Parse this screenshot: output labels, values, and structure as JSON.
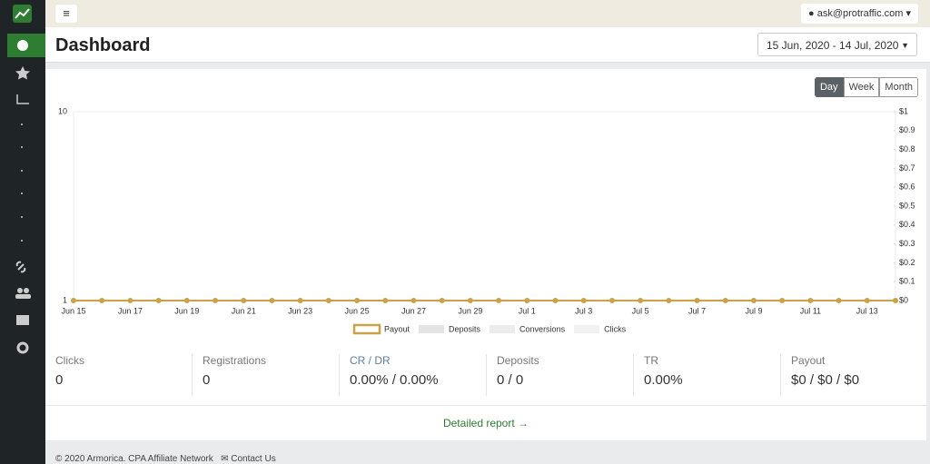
{
  "header": {
    "user": "ask@protraffic.com"
  },
  "page_title": "Dashboard",
  "date_range": "15 Jun, 2020 - 14 Jul, 2020",
  "period_buttons": [
    "Day",
    "Week",
    "Month"
  ],
  "chart_data": {
    "type": "line",
    "categories": [
      "Jun 15",
      null,
      "Jun 17",
      null,
      "Jun 19",
      null,
      "Jun 21",
      null,
      "Jun 23",
      null,
      "Jun 25",
      null,
      "Jun 27",
      null,
      "Jun 29",
      null,
      "Jul 1",
      null,
      "Jul 3",
      null,
      "Jul 5",
      null,
      "Jul 7",
      null,
      "Jul 9",
      null,
      "Jul 11",
      null,
      "Jul 13",
      null
    ],
    "series": [
      {
        "name": "Payout",
        "color": "#c9a24a",
        "axis": "y2",
        "values": [
          0,
          0,
          0,
          0,
          0,
          0,
          0,
          0,
          0,
          0,
          0,
          0,
          0,
          0,
          0,
          0,
          0,
          0,
          0,
          0,
          0,
          0,
          0,
          0,
          0,
          0,
          0,
          0,
          0,
          0
        ]
      },
      {
        "name": "Deposits",
        "color": "#e4e4e4",
        "values": [
          null,
          null,
          null,
          null,
          null,
          null,
          null,
          null,
          null,
          null,
          null,
          null,
          null,
          null,
          null,
          null,
          null,
          null,
          null,
          null,
          null,
          null,
          null,
          null,
          null,
          null,
          null,
          null,
          null,
          null
        ]
      },
      {
        "name": "Conversions",
        "color": "#ececec",
        "values": [
          null,
          null,
          null,
          null,
          null,
          null,
          null,
          null,
          null,
          null,
          null,
          null,
          null,
          null,
          null,
          null,
          null,
          null,
          null,
          null,
          null,
          null,
          null,
          null,
          null,
          null,
          null,
          null,
          null,
          null
        ]
      },
      {
        "name": "Clicks",
        "color": "#f1f1f1",
        "values": [
          null,
          null,
          null,
          null,
          null,
          null,
          null,
          null,
          null,
          null,
          null,
          null,
          null,
          null,
          null,
          null,
          null,
          null,
          null,
          null,
          null,
          null,
          null,
          null,
          null,
          null,
          null,
          null,
          null,
          null
        ]
      }
    ],
    "ylim": [
      1,
      10
    ],
    "yticks": [
      1,
      10
    ],
    "log_y": true,
    "y2lim": [
      0,
      1
    ],
    "y2ticks": [
      {
        "value": 0,
        "label": "$0"
      },
      {
        "value": 0.1,
        "label": "$0.1"
      },
      {
        "value": 0.2,
        "label": "$0.2"
      },
      {
        "value": 0.3,
        "label": "$0.3"
      },
      {
        "value": 0.4,
        "label": "$0.4"
      },
      {
        "value": 0.5,
        "label": "$0.5"
      },
      {
        "value": 0.6,
        "label": "$0.6"
      },
      {
        "value": 0.7,
        "label": "$0.7"
      },
      {
        "value": 0.8,
        "label": "$0.8"
      },
      {
        "value": 0.9,
        "label": "$0.9"
      },
      {
        "value": 1,
        "label": "$1"
      }
    ],
    "grid": true,
    "legend": "bottom"
  },
  "stats": [
    {
      "label": "Clicks",
      "value": "0"
    },
    {
      "label": "Registrations",
      "value": "0"
    },
    {
      "label": "CR / DR",
      "value": "0.00% / 0.00%"
    },
    {
      "label": "Deposits",
      "value": "0 / 0"
    },
    {
      "label": "TR",
      "value": "0.00%"
    },
    {
      "label": "Payout",
      "value": "$0 / $0 / $0"
    }
  ],
  "detailed_report": "Detailed report →",
  "footer": {
    "copyright": "© 2020 Armorica. CPA Affiliate Network",
    "contact": "Contact Us"
  }
}
